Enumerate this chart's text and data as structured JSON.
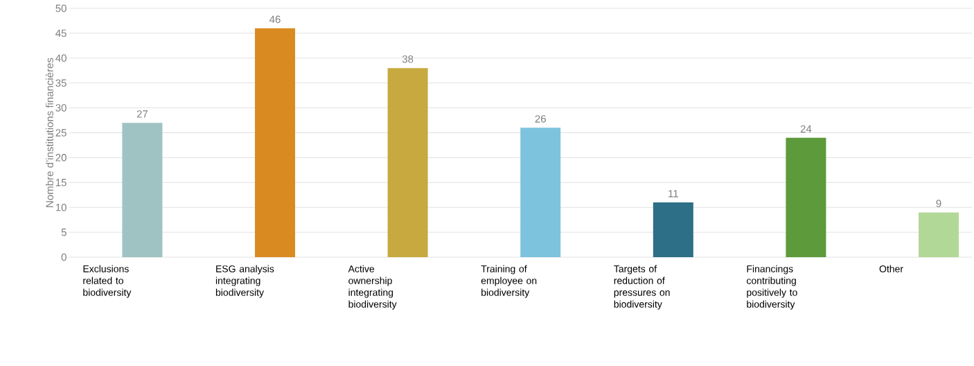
{
  "chart_data": {
    "type": "bar",
    "ylabel": "Nombre d’institutions financières",
    "categories": [
      "Exclusions related to biodiversity",
      "ESG analysis integrating biodiversity",
      "Active ownership integrating biodiversity",
      "Training of employee on biodiversity",
      "Targets of reduction of pressures on biodiversity",
      "Financings contributing positively to biodiversity",
      "Other"
    ],
    "values": [
      27,
      46,
      38,
      26,
      11,
      24,
      9
    ],
    "colors": [
      "#9fc3c3",
      "#d98b22",
      "#c8a93f",
      "#7dc3dd",
      "#2d6f87",
      "#5c9a3b",
      "#b2d897"
    ],
    "ylim": [
      0,
      50
    ],
    "yticks": [
      0,
      5,
      10,
      15,
      20,
      25,
      30,
      35,
      40,
      45,
      50
    ],
    "grid": "y",
    "data_labels": true
  }
}
